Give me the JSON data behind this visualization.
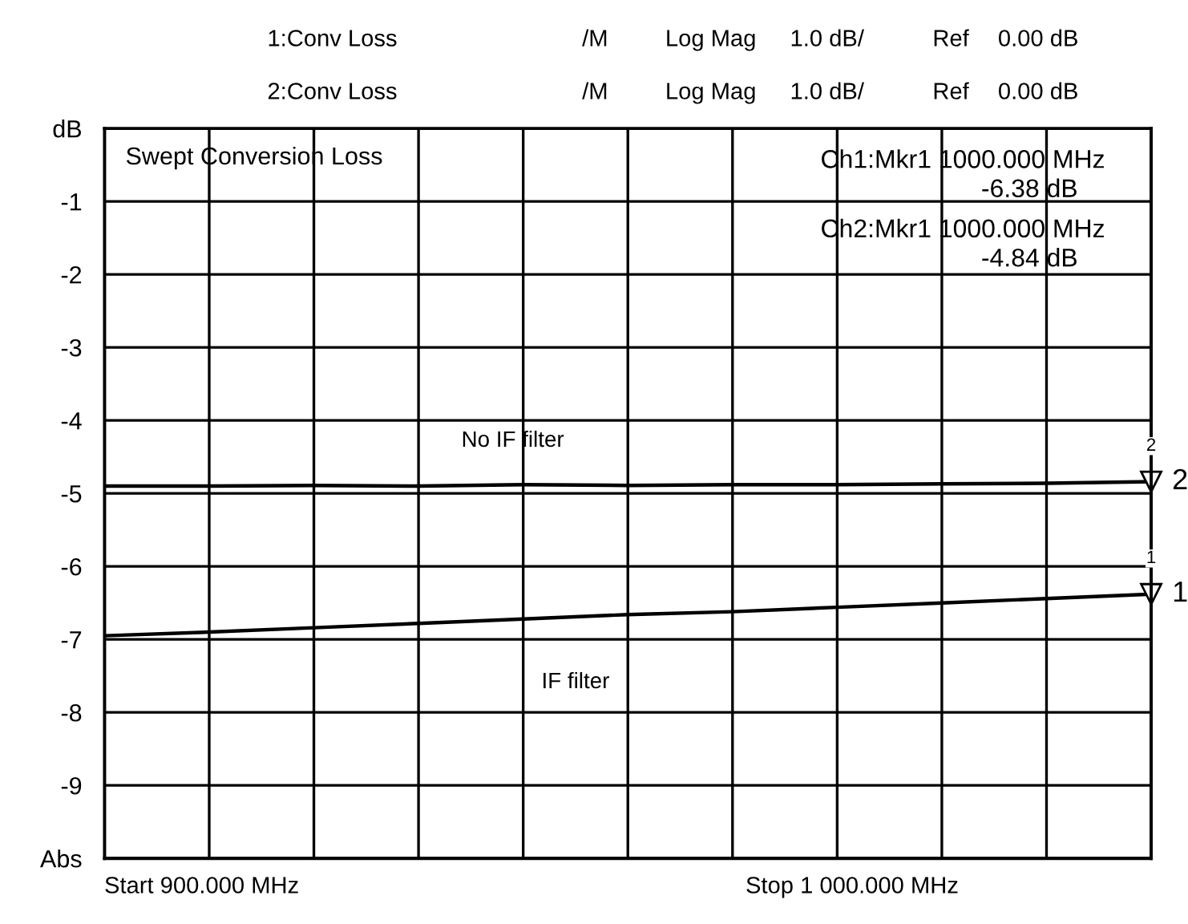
{
  "chart_data": {
    "type": "line",
    "title": "Swept Conversion Loss",
    "categories": [
      null,
      null,
      null,
      null,
      null,
      null,
      null,
      null,
      null,
      null,
      null
    ],
    "series": [
      {
        "name": "No IF filter",
        "color": "#000000",
        "values": [
          -4.9,
          -4.9,
          -4.89,
          -4.9,
          -4.88,
          -4.89,
          -4.88,
          -4.88,
          -4.87,
          -4.86,
          -4.84
        ]
      },
      {
        "name": "IF filter",
        "color": "#000000",
        "values": [
          -6.95,
          -6.9,
          -6.84,
          -6.78,
          -6.72,
          -6.66,
          -6.62,
          -6.56,
          -6.5,
          -6.44,
          -6.38
        ]
      }
    ],
    "ylim": [
      -10,
      0
    ],
    "yticks": [
      {
        "value": 0,
        "label": "dB"
      },
      -1,
      -2,
      -3,
      -4,
      -5,
      -6,
      -7,
      -8,
      -9,
      {
        "value": -10,
        "label": "Abs"
      }
    ],
    "tick_labels": "y",
    "grid": true,
    "legend": false,
    "marker": "none",
    "line_style": "solid",
    "annotations": [
      "1:Conv Loss",
      "/M",
      "Log Mag",
      "1.0 dB/",
      "Ref",
      "0.00 dB",
      "2:Conv Loss",
      "/M",
      "Log Mag",
      "1.0 dB/",
      "Ref",
      "0.00 dB",
      "Ch1:Mkr1 1000.000 MHz",
      "-6.38 dB",
      "Ch2:Mkr1 1000.000 MHz",
      "-4.84 dB",
      "Start 900.000 MHz",
      "Stop 1 000.000 MHz",
      "2",
      "2",
      "1",
      "1"
    ]
  }
}
